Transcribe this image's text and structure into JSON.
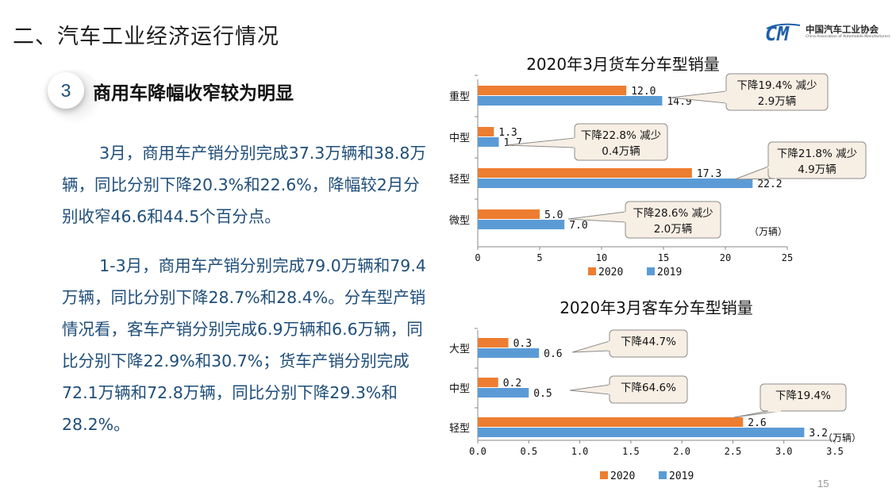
{
  "page": {
    "title": "二、汽车工业经济运行情况",
    "logo_cn": "中国汽车工业协会",
    "logo_en": "China Association of Automobile Manufacturers",
    "section_number": "3",
    "section_title": "商用车降幅收窄较为明显",
    "paragraph1": "3月，商用车产销分别完成37.3万辆和38.8万辆，同比分别下降20.3%和22.6%，降幅较2月分别收窄46.6和44.5个百分点。",
    "paragraph2": "1-3月，商用车产销分别完成79.0万辆和79.4万辆，同比分别下降28.7%和28.4%。分车型产销情况看，客车产销分别完成6.9万辆和6.6万辆，同比分别下降22.9%和30.7%；货车产销分别完成72.1万辆和72.8万辆，同比分别下降29.3%和28.2%。",
    "page_number": "15"
  },
  "colors": {
    "s2020": "#ed7d31",
    "s2019": "#5b9bd5",
    "callout_bg": "#f8efe4",
    "callout_border": "#8c8c8c",
    "text_blue": "#1f4e79"
  },
  "chart_data": [
    {
      "type": "bar",
      "orientation": "horizontal",
      "title": "2020年3月货车分车型销量",
      "categories": [
        "重型",
        "中型",
        "轻型",
        "微型"
      ],
      "series": [
        {
          "name": "2020",
          "values": [
            12.0,
            1.3,
            17.3,
            5.0
          ],
          "labels": [
            "12.0",
            "1.3",
            "17.3",
            "5.0"
          ]
        },
        {
          "name": "2019",
          "values": [
            14.9,
            1.7,
            22.2,
            7.0
          ],
          "labels": [
            "14.9",
            "1.7",
            "22.2",
            "7.0"
          ]
        }
      ],
      "xlim": [
        0,
        25
      ],
      "xticks": [
        "0",
        "5",
        "10",
        "15",
        "20",
        "25"
      ],
      "unit": "（万辆）",
      "legend_position": "bottom",
      "annotations": [
        "下降19.4% 减少2.9万辆",
        "下降22.8% 减少0.4万辆",
        "下降21.8% 减少4.9万辆",
        "下降28.6% 减少2.0万辆"
      ]
    },
    {
      "type": "bar",
      "orientation": "horizontal",
      "title": "2020年3月客车分车型销量",
      "categories": [
        "大型",
        "中型",
        "轻型"
      ],
      "series": [
        {
          "name": "2020",
          "values": [
            0.3,
            0.2,
            2.6
          ],
          "labels": [
            "0.3",
            "0.2",
            "2.6"
          ]
        },
        {
          "name": "2019",
          "values": [
            0.6,
            0.5,
            3.2
          ],
          "labels": [
            "0.6",
            "0.5",
            "3.2"
          ]
        }
      ],
      "xlim": [
        0,
        3.5
      ],
      "xticks": [
        "0.0",
        "0.5",
        "1.0",
        "1.5",
        "2.0",
        "2.5",
        "3.0",
        "3.5"
      ],
      "unit": "（万辆）",
      "legend_position": "bottom",
      "annotations": [
        "下降44.7%",
        "下降64.6%",
        "下降19.4%"
      ]
    }
  ]
}
